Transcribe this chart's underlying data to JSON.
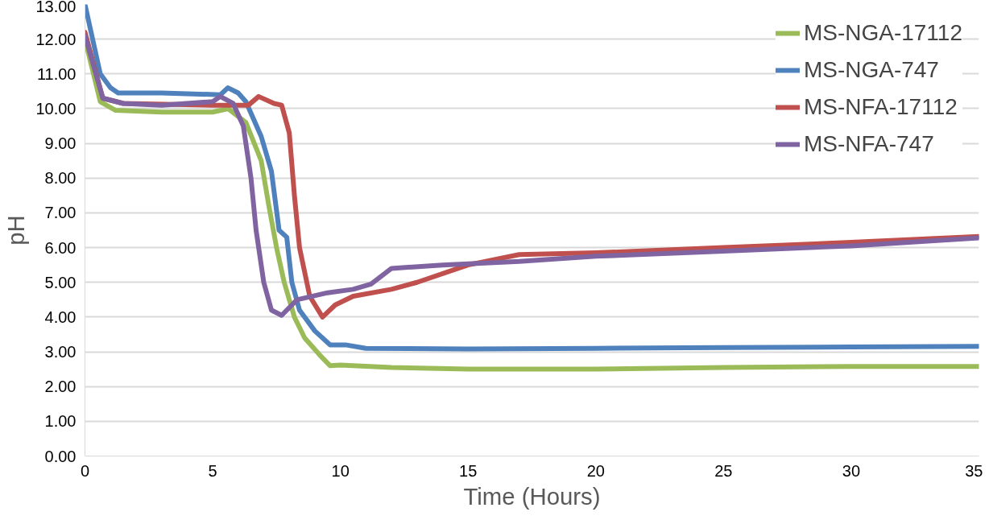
{
  "chart_data": {
    "type": "line",
    "xlabel": "Time (Hours)",
    "ylabel": "pH",
    "xlim": [
      0,
      35
    ],
    "xticks": [
      0,
      5,
      10,
      15,
      20,
      25,
      30,
      35
    ],
    "ylim": [
      0,
      13
    ],
    "yticks": [
      {
        "value": 0,
        "label": "0.00"
      },
      {
        "value": 1,
        "label": "1.00"
      },
      {
        "value": 2,
        "label": "2.00"
      },
      {
        "value": 3,
        "label": "3.00"
      },
      {
        "value": 4,
        "label": "4.00"
      },
      {
        "value": 5,
        "label": "5.00"
      },
      {
        "value": 6,
        "label": "6.00"
      },
      {
        "value": 7,
        "label": "7.00"
      },
      {
        "value": 8,
        "label": "8.00"
      },
      {
        "value": 9,
        "label": "9.00"
      },
      {
        "value": 10,
        "label": "10.00"
      },
      {
        "value": 11,
        "label": "11.00"
      },
      {
        "value": 12,
        "label": "12.00"
      },
      {
        "value": 13,
        "label": "13.00"
      }
    ],
    "grid": "y",
    "legend": "top right",
    "line_style": "solid",
    "marker": "none",
    "series": [
      {
        "name": "MS-NGA-17112",
        "color": "#9bbb59",
        "x": [
          0,
          0.6,
          1.2,
          3,
          5,
          5.6,
          6.3,
          6.9,
          7.2,
          7.5,
          7.8,
          8.2,
          8.6,
          9.2,
          9.6,
          10,
          12,
          15,
          20,
          25,
          30,
          35
        ],
        "values": [
          12.0,
          10.2,
          9.95,
          9.9,
          9.9,
          10.0,
          9.6,
          8.5,
          7.2,
          6.0,
          5.0,
          4.0,
          3.4,
          2.9,
          2.6,
          2.62,
          2.55,
          2.5,
          2.5,
          2.55,
          2.58,
          2.58
        ]
      },
      {
        "name": "MS-NGA-747",
        "color": "#4f81bd",
        "x": [
          0,
          0.6,
          1,
          1.3,
          3,
          5.3,
          5.6,
          6.0,
          6.3,
          6.9,
          7.3,
          7.6,
          7.9,
          8.1,
          8.4,
          9,
          9.6,
          10.2,
          11,
          15,
          20,
          25,
          30,
          35
        ],
        "values": [
          13.0,
          11.0,
          10.6,
          10.45,
          10.45,
          10.4,
          10.6,
          10.45,
          10.2,
          9.2,
          8.2,
          6.5,
          6.3,
          5.0,
          4.2,
          3.6,
          3.2,
          3.2,
          3.1,
          3.08,
          3.1,
          3.12,
          3.14,
          3.16
        ]
      },
      {
        "name": "MS-NFA-17112",
        "color": "#c0504d",
        "x": [
          0,
          0.7,
          1.5,
          5,
          6.4,
          6.8,
          7.4,
          7.7,
          8.0,
          8.2,
          8.4,
          8.8,
          9.3,
          9.8,
          10.5,
          12,
          13,
          15,
          17,
          20,
          25,
          30,
          35
        ],
        "values": [
          12.2,
          10.3,
          10.15,
          10.1,
          10.1,
          10.35,
          10.15,
          10.1,
          9.3,
          7.5,
          6.0,
          4.6,
          4.0,
          4.35,
          4.6,
          4.8,
          5.0,
          5.5,
          5.8,
          5.85,
          6.0,
          6.15,
          6.32
        ]
      },
      {
        "name": "MS-NFA-747",
        "color": "#8064a2",
        "x": [
          0,
          0.7,
          1.5,
          3,
          5,
          5.3,
          5.8,
          6.2,
          6.5,
          6.7,
          7.0,
          7.3,
          7.7,
          8.3,
          9.5,
          10.5,
          11.2,
          12,
          14,
          17,
          20,
          25,
          30,
          35
        ],
        "values": [
          12.1,
          10.3,
          10.15,
          10.1,
          10.2,
          10.35,
          10.15,
          9.5,
          8.0,
          6.5,
          5.0,
          4.2,
          4.05,
          4.5,
          4.7,
          4.8,
          4.95,
          5.4,
          5.5,
          5.6,
          5.75,
          5.9,
          6.05,
          6.28
        ]
      }
    ]
  }
}
